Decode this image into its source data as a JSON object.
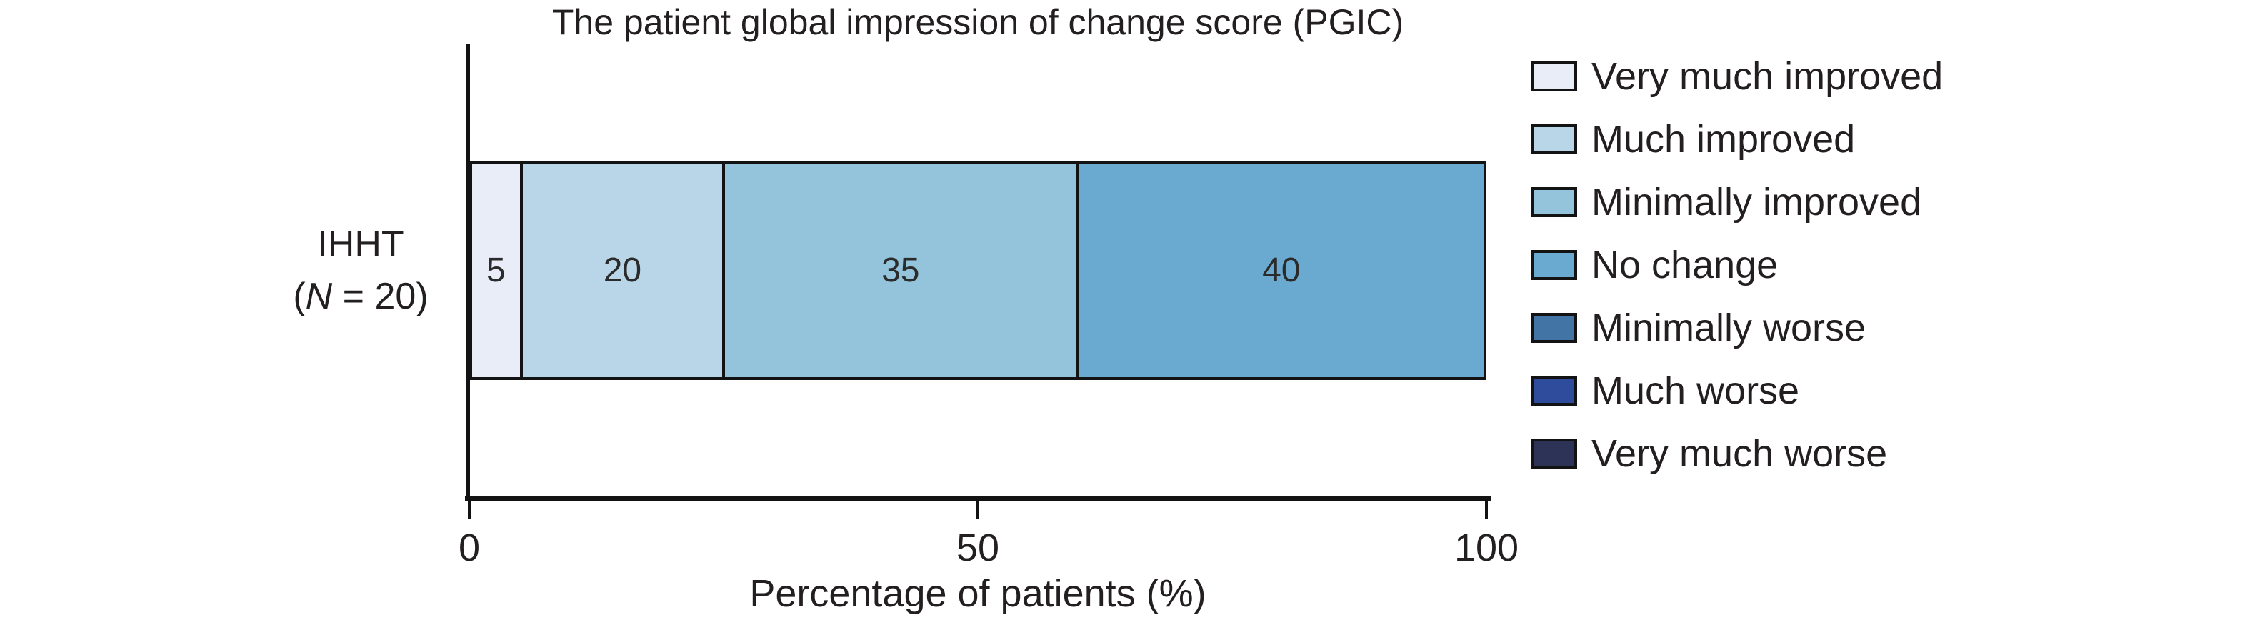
{
  "colors": {
    "axis": "#131313",
    "text": "#231f20",
    "background": "#ffffff"
  },
  "chart_data": {
    "type": "bar",
    "orientation": "horizontal-stacked",
    "title": "The patient global impression of change score (PGIC)",
    "xlabel": "Percentage of patients (%)",
    "xlim": [
      0,
      100
    ],
    "xticks": [
      0,
      50,
      100
    ],
    "grid": false,
    "legend_position": "right",
    "categories": [
      "IHHT (N = 20)"
    ],
    "category_label": {
      "line1": "IHHT",
      "line2_open": "(",
      "line2_italic": "N",
      "line2_rest": " = 20)"
    },
    "series": [
      {
        "name": "Very much improved",
        "values": [
          5
        ],
        "color": "#e8edf8"
      },
      {
        "name": "Much improved",
        "values": [
          20
        ],
        "color": "#b9d6e9"
      },
      {
        "name": "Minimally improved",
        "values": [
          35
        ],
        "color": "#94c4dc"
      },
      {
        "name": "No change",
        "values": [
          40
        ],
        "color": "#6aaad0"
      },
      {
        "name": "Minimally worse",
        "values": [
          0
        ],
        "color": "#4274a5"
      },
      {
        "name": "Much worse",
        "values": [
          0
        ],
        "color": "#2f4b9b"
      },
      {
        "name": "Very much worse",
        "values": [
          0
        ],
        "color": "#2c3356"
      }
    ]
  }
}
